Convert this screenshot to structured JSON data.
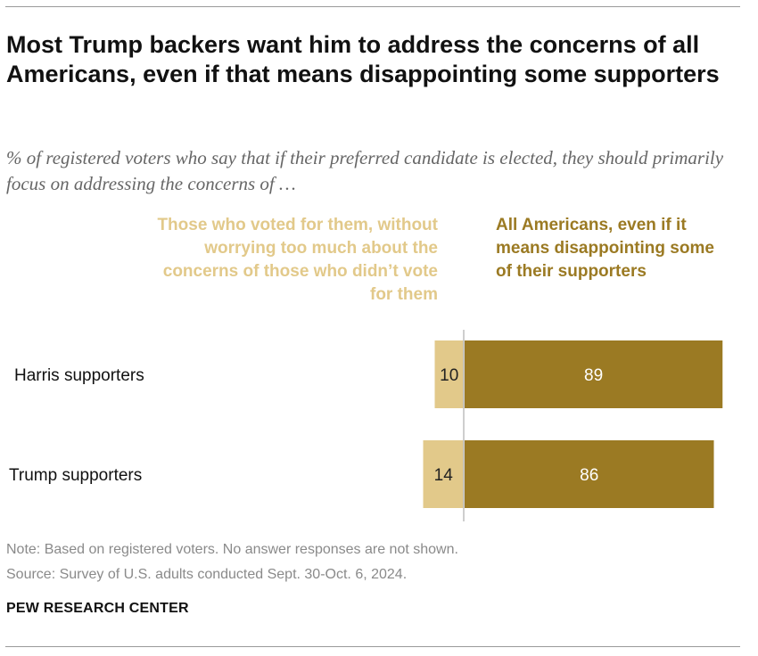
{
  "title": "Most Trump backers want him to address the concerns of all Americans, even if that means disappointing some supporters",
  "subtitle": "% of registered voters who say that if their preferred candidate is elected, they should primarily focus on addressing the concerns of …",
  "colors": {
    "light": "#e2c98a",
    "dark": "#9b7a23",
    "axis": "#bdbdbd"
  },
  "legend": {
    "left_label": "Those who voted for them, without worrying too much about the concerns of those who didn’t vote for them",
    "right_label": "All Americans, even if it means disappointing some of their supporters"
  },
  "chart_data": {
    "type": "bar",
    "orientation": "horizontal-diverging",
    "categories": [
      "Harris supporters",
      "Trump supporters"
    ],
    "series": [
      {
        "name": "Those who voted for them, without worrying too much about the concerns of those who didn’t vote for them",
        "values": [
          10,
          14
        ]
      },
      {
        "name": "All Americans, even if it means disappointing some of their supporters",
        "values": [
          89,
          86
        ]
      }
    ],
    "xlim": [
      0,
      100
    ],
    "grid": false
  },
  "note": "Note: Based on registered voters. No answer responses are not shown.",
  "source": "Source: Survey of U.S. adults conducted Sept. 30-Oct. 6, 2024.",
  "brand": "PEW RESEARCH CENTER"
}
